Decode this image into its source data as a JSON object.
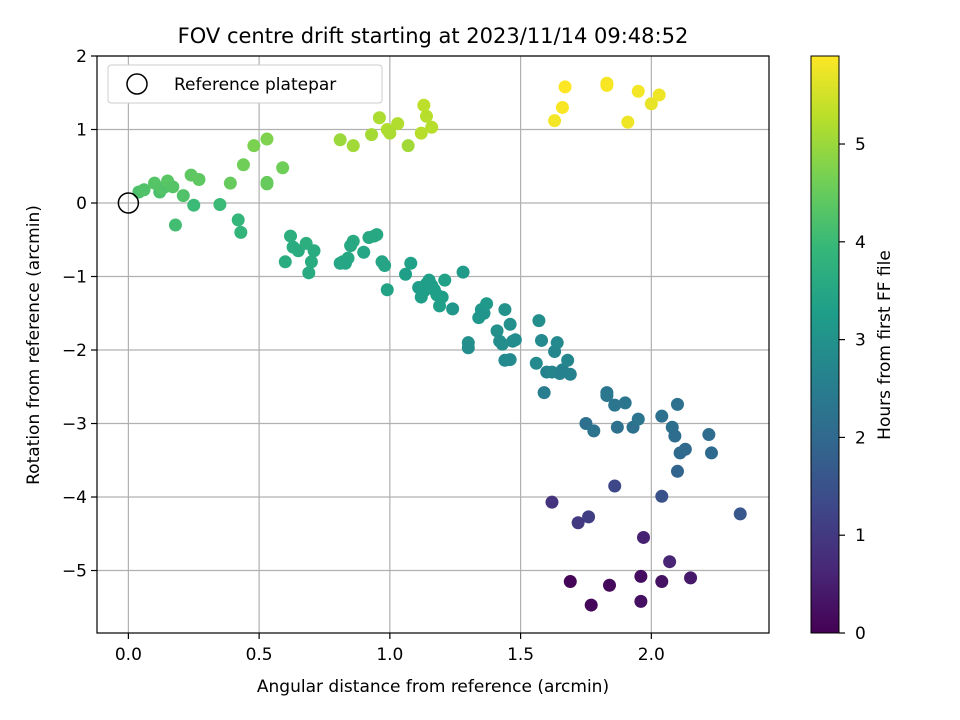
{
  "chart_data": {
    "type": "scatter",
    "title": "FOV centre drift starting at 2023/11/14 09:48:52",
    "xlabel": "Angular distance from reference (arcmin)",
    "ylabel": "Rotation from reference (arcmin)",
    "xlim": [
      -0.12,
      2.45
    ],
    "ylim": [
      -5.85,
      2.0
    ],
    "x_ticks": [
      0.0,
      0.5,
      1.0,
      1.5,
      2.0
    ],
    "x_tick_labels": [
      "0.0",
      "0.5",
      "1.0",
      "1.5",
      "2.0"
    ],
    "y_ticks": [
      2,
      1,
      0,
      -1,
      -2,
      -3,
      -4,
      -5
    ],
    "y_tick_labels": [
      "2",
      "1",
      "0",
      "−1",
      "−2",
      "−3",
      "−4",
      "−5"
    ],
    "grid": true,
    "legend": {
      "placement": "top-left",
      "entries": [
        "Reference platepar"
      ]
    },
    "reference_point": {
      "x": 0.0,
      "y": 0.0
    },
    "colorbar": {
      "label": "Hours from first FF file",
      "range": [
        0,
        5.9
      ],
      "ticks": [
        0,
        1,
        2,
        3,
        4,
        5
      ],
      "tick_labels": [
        "0",
        "1",
        "2",
        "3",
        "4",
        "5"
      ],
      "colormap": [
        "#440154",
        "#482878",
        "#3e4989",
        "#31688e",
        "#26828e",
        "#1f9e89",
        "#35b779",
        "#6ece58",
        "#b5de2b",
        "#fde725"
      ]
    },
    "series": [
      {
        "x": [
          1.69,
          1.77,
          1.84,
          1.96,
          1.96,
          2.04,
          2.15,
          1.97,
          2.07,
          1.62,
          1.72,
          1.76,
          1.86,
          2.04,
          2.34
        ],
        "y": [
          -5.15,
          -5.47,
          -5.2,
          -5.08,
          -5.42,
          -5.15,
          -5.1,
          -4.55,
          -4.88,
          -4.07,
          -4.35,
          -4.27,
          -3.85,
          -3.99,
          -4.23
        ],
        "c": [
          0.05,
          0.1,
          0.15,
          0.2,
          0.25,
          0.3,
          0.4,
          0.55,
          0.6,
          0.9,
          1.0,
          1.1,
          1.3,
          1.5,
          1.6
        ]
      },
      {
        "x": [
          1.75,
          1.78,
          1.83,
          1.83,
          1.86,
          1.87,
          1.9,
          1.93,
          1.95,
          2.04,
          2.08,
          2.09,
          2.1,
          2.1,
          2.11,
          2.13,
          2.22,
          2.23
        ],
        "y": [
          -3.0,
          -3.1,
          -2.58,
          -2.62,
          -2.75,
          -3.05,
          -2.72,
          -3.05,
          -2.94,
          -2.9,
          -3.05,
          -3.17,
          -2.74,
          -3.65,
          -3.4,
          -3.35,
          -3.15,
          -3.4
        ],
        "c": [
          2.2,
          2.25,
          2.3,
          2.35,
          2.3,
          2.2,
          2.3,
          2.2,
          2.3,
          2.2,
          2.15,
          2.1,
          2.2,
          1.9,
          2.0,
          2.05,
          2.1,
          2.0
        ]
      },
      {
        "x": [
          1.57,
          1.58,
          1.6,
          1.62,
          1.63,
          1.64,
          1.65,
          1.66,
          1.68,
          1.69,
          1.56,
          1.59,
          1.44,
          1.46,
          1.47,
          1.41,
          1.42,
          1.43,
          1.44,
          1.46,
          1.48,
          1.3,
          1.3,
          1.34,
          1.35,
          1.36,
          1.37,
          1.28,
          1.24
        ],
        "y": [
          -1.6,
          -1.87,
          -2.3,
          -2.3,
          -2.02,
          -1.9,
          -2.32,
          -2.27,
          -2.14,
          -2.33,
          -2.18,
          -2.58,
          -1.45,
          -1.65,
          -1.88,
          -1.74,
          -1.88,
          -1.92,
          -2.14,
          -2.13,
          -1.86,
          -1.9,
          -1.97,
          -1.56,
          -1.45,
          -1.5,
          -1.37,
          -0.94,
          -1.44
        ],
        "c": [
          2.9,
          2.8,
          2.6,
          2.7,
          2.75,
          2.8,
          2.65,
          2.6,
          2.7,
          2.6,
          2.8,
          2.5,
          3.0,
          2.95,
          2.85,
          2.95,
          2.9,
          2.9,
          2.8,
          2.8,
          2.85,
          2.95,
          2.9,
          3.1,
          3.1,
          3.05,
          3.15,
          3.2,
          3.1
        ]
      },
      {
        "x": [
          1.11,
          1.12,
          1.13,
          1.14,
          1.15,
          1.16,
          1.17,
          1.18,
          1.19,
          1.2,
          1.21,
          1.06,
          1.08,
          0.99,
          0.97,
          0.98,
          0.92,
          0.94,
          0.95,
          0.9,
          0.86,
          0.85,
          0.84,
          0.83,
          0.82,
          0.81,
          0.6,
          0.62,
          0.63,
          0.65,
          0.68,
          0.69,
          0.7,
          0.71
        ],
        "y": [
          -1.15,
          -1.28,
          -1.2,
          -1.1,
          -1.05,
          -1.12,
          -1.18,
          -1.25,
          -1.4,
          -1.28,
          -1.05,
          -0.97,
          -0.82,
          -1.18,
          -0.8,
          -0.85,
          -0.47,
          -0.45,
          -0.43,
          -0.67,
          -0.52,
          -0.58,
          -0.75,
          -0.82,
          -0.8,
          -0.82,
          -0.8,
          -0.45,
          -0.6,
          -0.65,
          -0.55,
          -0.95,
          -0.8,
          -0.65
        ],
        "c": [
          3.25,
          3.3,
          3.3,
          3.3,
          3.3,
          3.25,
          3.3,
          3.3,
          3.3,
          3.3,
          3.35,
          3.3,
          3.35,
          3.4,
          3.45,
          3.45,
          3.55,
          3.55,
          3.55,
          3.5,
          3.6,
          3.55,
          3.55,
          3.5,
          3.5,
          3.5,
          3.65,
          3.7,
          3.65,
          3.65,
          3.7,
          3.6,
          3.65,
          3.65
        ]
      },
      {
        "x": [
          0.04,
          0.06,
          0.1,
          0.12,
          0.13,
          0.14,
          0.15,
          0.17,
          0.18,
          0.21,
          0.24,
          0.25,
          0.27,
          0.35,
          0.39,
          0.42,
          0.43,
          0.44,
          0.48,
          0.53,
          0.53,
          0.53,
          0.59
        ],
        "y": [
          0.15,
          0.18,
          0.27,
          0.15,
          0.2,
          0.22,
          0.3,
          0.22,
          -0.3,
          0.1,
          0.38,
          -0.03,
          0.32,
          -0.02,
          0.27,
          -0.23,
          -0.4,
          0.52,
          0.78,
          0.87,
          0.28,
          0.26,
          0.48
        ],
        "c": [
          4.2,
          4.25,
          4.3,
          4.2,
          4.3,
          4.25,
          4.35,
          4.3,
          4.1,
          4.25,
          4.4,
          4.0,
          4.4,
          4.0,
          4.5,
          3.9,
          3.85,
          4.6,
          4.7,
          4.75,
          4.5,
          4.5,
          4.6
        ]
      },
      {
        "x": [
          0.81,
          0.86,
          0.93,
          0.96,
          0.99,
          1.0,
          1.03,
          1.07,
          1.12,
          1.13,
          1.14,
          1.16
        ],
        "y": [
          0.86,
          0.78,
          0.93,
          1.16,
          1.0,
          0.95,
          1.08,
          0.78,
          0.95,
          1.33,
          1.18,
          1.03
        ],
        "c": [
          5.0,
          5.05,
          5.1,
          5.15,
          5.2,
          5.15,
          5.2,
          5.05,
          5.25,
          5.3,
          5.25,
          5.25
        ]
      },
      {
        "x": [
          1.63,
          1.66,
          1.67,
          1.83,
          1.83,
          1.91,
          1.95,
          2.0,
          2.03
        ],
        "y": [
          1.12,
          1.3,
          1.58,
          1.63,
          1.6,
          1.1,
          1.52,
          1.35,
          1.47
        ],
        "c": [
          5.8,
          5.85,
          5.9,
          5.8,
          5.85,
          5.75,
          5.8,
          5.7,
          5.75
        ]
      }
    ]
  }
}
